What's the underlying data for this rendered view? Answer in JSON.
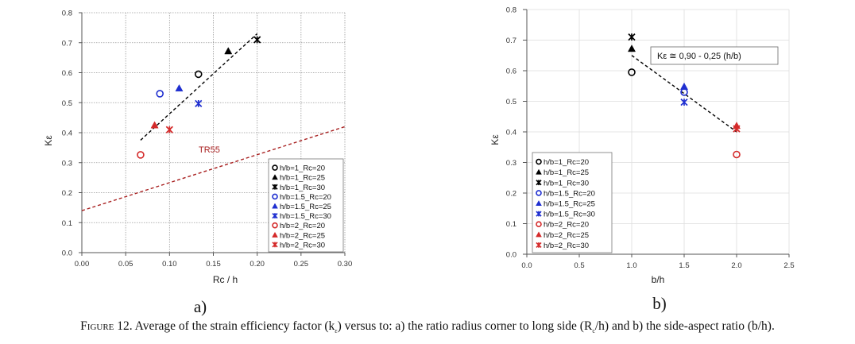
{
  "chart_data": [
    {
      "type": "scatter",
      "panel_label": "a)",
      "xlabel": "Rc / h",
      "ylabel": "Kε",
      "xlim": [
        0,
        0.3
      ],
      "ylim": [
        0,
        0.8
      ],
      "x_ticks": [
        "0.00",
        "0.05",
        "0.10",
        "0.15",
        "0.20",
        "0.25",
        "0.30"
      ],
      "y_ticks": [
        "0.0",
        "0.1",
        "0.2",
        "0.3",
        "0.4",
        "0.5",
        "0.6",
        "0.7",
        "0.8"
      ],
      "grid": true,
      "legend_position": "bottom-right",
      "series": [
        {
          "name": "h/b=1_Rc=20",
          "marker": "circle",
          "color": "#000000",
          "x": [
            0.133
          ],
          "y": [
            0.595
          ]
        },
        {
          "name": "h/b=1_Rc=25",
          "marker": "triangle",
          "color": "#000000",
          "x": [
            0.167
          ],
          "y": [
            0.672
          ]
        },
        {
          "name": "h/b=1_Rc=30",
          "marker": "asterisk",
          "color": "#000000",
          "x": [
            0.2
          ],
          "y": [
            0.71
          ]
        },
        {
          "name": "h/b=1.5_Rc=20",
          "marker": "circle",
          "color": "#1f2fd0",
          "x": [
            0.089
          ],
          "y": [
            0.53
          ]
        },
        {
          "name": "h/b=1.5_Rc=25",
          "marker": "triangle",
          "color": "#1f2fd0",
          "x": [
            0.111
          ],
          "y": [
            0.548
          ]
        },
        {
          "name": "h/b=1.5_Rc=30",
          "marker": "asterisk",
          "color": "#1f2fd0",
          "x": [
            0.133
          ],
          "y": [
            0.497
          ]
        },
        {
          "name": "h/b=2_Rc=20",
          "marker": "circle",
          "color": "#d42a2a",
          "x": [
            0.067
          ],
          "y": [
            0.326
          ]
        },
        {
          "name": "h/b=2_Rc=25",
          "marker": "triangle",
          "color": "#d42a2a",
          "x": [
            0.083
          ],
          "y": [
            0.425
          ]
        },
        {
          "name": "h/b=2_Rc=30",
          "marker": "asterisk",
          "color": "#d42a2a",
          "x": [
            0.1
          ],
          "y": [
            0.41
          ]
        }
      ],
      "lines": [
        {
          "color": "#000000",
          "x": [
            0.067,
            0.2
          ],
          "y": [
            0.375,
            0.73
          ]
        },
        {
          "label": "TR55",
          "color": "#a82020",
          "x": [
            0,
            0.3
          ],
          "y": [
            0.14,
            0.42
          ]
        }
      ]
    },
    {
      "type": "scatter",
      "panel_label": "b)",
      "xlabel": "b/h",
      "ylabel": "Kε",
      "xlim": [
        0,
        2.5
      ],
      "ylim": [
        0,
        0.8
      ],
      "x_ticks": [
        "0.0",
        "0.5",
        "1.0",
        "1.5",
        "2.0",
        "2.5"
      ],
      "y_ticks": [
        "0.0",
        "0.1",
        "0.2",
        "0.3",
        "0.4",
        "0.5",
        "0.6",
        "0.7",
        "0.8"
      ],
      "grid": true,
      "legend_position": "bottom-left",
      "series": [
        {
          "name": "h/b=1_Rc=20",
          "marker": "circle",
          "color": "#000000",
          "x": [
            1.0
          ],
          "y": [
            0.595
          ]
        },
        {
          "name": "h/b=1_Rc=25",
          "marker": "triangle",
          "color": "#000000",
          "x": [
            1.0
          ],
          "y": [
            0.672
          ]
        },
        {
          "name": "h/b=1_Rc=30",
          "marker": "asterisk",
          "color": "#000000",
          "x": [
            1.0
          ],
          "y": [
            0.71
          ]
        },
        {
          "name": "h/b=1.5_Rc=20",
          "marker": "circle",
          "color": "#1f2fd0",
          "x": [
            1.5
          ],
          "y": [
            0.53
          ]
        },
        {
          "name": "h/b=1.5_Rc=25",
          "marker": "triangle",
          "color": "#1f2fd0",
          "x": [
            1.5
          ],
          "y": [
            0.548
          ]
        },
        {
          "name": "h/b=1.5_Rc=30",
          "marker": "asterisk",
          "color": "#1f2fd0",
          "x": [
            1.5
          ],
          "y": [
            0.497
          ]
        },
        {
          "name": "h/b=2_Rc=20",
          "marker": "circle",
          "color": "#d42a2a",
          "x": [
            2.0
          ],
          "y": [
            0.326
          ]
        },
        {
          "name": "h/b=2_Rc=25",
          "marker": "triangle",
          "color": "#d42a2a",
          "x": [
            2.0
          ],
          "y": [
            0.42
          ]
        },
        {
          "name": "h/b=2_Rc=30",
          "marker": "asterisk",
          "color": "#d42a2a",
          "x": [
            2.0
          ],
          "y": [
            0.41
          ]
        }
      ],
      "lines": [
        {
          "color": "#000000",
          "x": [
            1.0,
            2.0
          ],
          "y": [
            0.65,
            0.4
          ]
        }
      ],
      "annotation": "Kε ≅ 0,90 - 0,25 (h/b)"
    }
  ],
  "caption": {
    "prefix": "Figure 12.",
    "t1": " Average of the strain efficiency factor (k",
    "s1": "ε",
    "t2": ") versus to: a) the ratio radius corner to long side (R",
    "s2": "c",
    "t3": "/h) and b) the side-aspect ratio (b/h)."
  }
}
